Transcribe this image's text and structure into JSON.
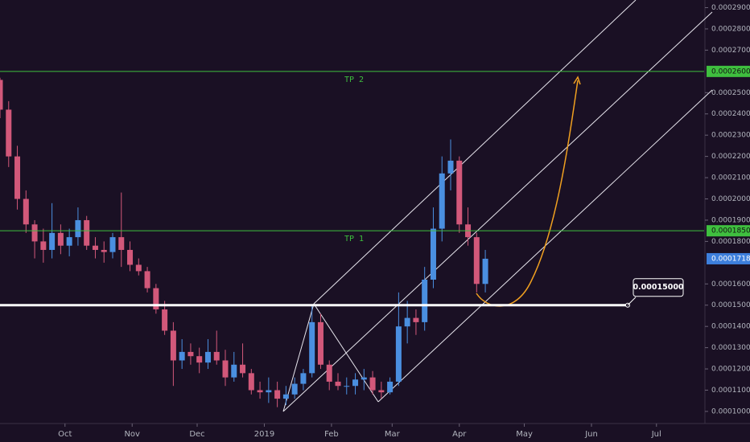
{
  "chart_data": {
    "type": "candlestick",
    "xlim": [
      0,
      325
    ],
    "xticks": [
      {
        "value": 30,
        "label": "Oct"
      },
      {
        "value": 61,
        "label": "Nov"
      },
      {
        "value": 91,
        "label": "Dec"
      },
      {
        "value": 122,
        "label": "2019"
      },
      {
        "value": 153,
        "label": "Feb"
      },
      {
        "value": 181,
        "label": "Mar"
      },
      {
        "value": 212,
        "label": "Apr"
      },
      {
        "value": 242,
        "label": "May"
      },
      {
        "value": 273,
        "label": "Jun"
      },
      {
        "value": 303,
        "label": "Jul"
      }
    ],
    "ylim": [
      9.62e-05,
      0.0002936
    ],
    "yticks": [
      {
        "value": 0.0001,
        "label": "0.00010000"
      },
      {
        "value": 0.00011,
        "label": "0.00011000"
      },
      {
        "value": 0.00012,
        "label": "0.00012000"
      },
      {
        "value": 0.00013,
        "label": "0.00013000"
      },
      {
        "value": 0.00014,
        "label": "0.00014000"
      },
      {
        "value": 0.00015,
        "label": "0.00015000"
      },
      {
        "value": 0.00016,
        "label": "0.00016000"
      },
      {
        "value": 0.00018,
        "label": "0.00018000"
      },
      {
        "value": 0.00019,
        "label": "0.00019000"
      },
      {
        "value": 0.0002,
        "label": "0.00020000"
      },
      {
        "value": 0.00021,
        "label": "0.00021000"
      },
      {
        "value": 0.00022,
        "label": "0.00022000"
      },
      {
        "value": 0.00023,
        "label": "0.00023000"
      },
      {
        "value": 0.00024,
        "label": "0.00024000"
      },
      {
        "value": 0.00025,
        "label": "0.00025000"
      },
      {
        "value": 0.00027,
        "label": "0.00027000"
      },
      {
        "value": 0.00028,
        "label": "0.00028000"
      },
      {
        "value": 0.00029,
        "label": "0.00029000"
      }
    ],
    "up_color": "#4a8fe0",
    "down_color": "#d2587a",
    "candles": {
      "x": [
        0,
        4,
        8,
        12,
        16,
        20,
        24,
        28,
        32,
        36,
        40,
        44,
        48,
        52,
        56,
        60,
        64,
        68,
        72,
        76,
        80,
        84,
        88,
        92,
        96,
        100,
        104,
        108,
        112,
        116,
        120,
        124,
        128,
        132,
        136,
        140,
        144,
        148,
        152,
        156,
        160,
        164,
        168,
        172,
        176,
        180,
        184,
        188,
        192,
        196,
        200,
        204,
        208,
        212,
        216,
        220,
        224
      ],
      "open": [
        0.000256,
        0.000242,
        0.00022,
        0.0002,
        0.000188,
        0.00018,
        0.000176,
        0.000184,
        0.000178,
        0.000182,
        0.00019,
        0.000178,
        0.000176,
        0.000175,
        0.000182,
        0.000176,
        0.000169,
        0.000166,
        0.000158,
        0.000148,
        0.000138,
        0.000124,
        0.000128,
        0.000126,
        0.000123,
        0.000128,
        0.000124,
        0.000116,
        0.000122,
        0.000118,
        0.00011,
        0.000109,
        0.00011,
        0.000106,
        0.000108,
        0.000113,
        0.000118,
        0.000142,
        0.000122,
        0.000114,
        0.000112,
        0.000112,
        0.000115,
        0.000116,
        0.00011,
        0.000109,
        0.000114,
        0.00014,
        0.000144,
        0.000142,
        0.000162,
        0.000186,
        0.000212,
        0.000218,
        0.000188,
        0.000182,
        0.00016
      ],
      "high": [
        0.000257,
        0.000246,
        0.000225,
        0.000204,
        0.00019,
        0.000186,
        0.000198,
        0.000188,
        0.000186,
        0.000196,
        0.000192,
        0.000182,
        0.00018,
        0.000184,
        0.000203,
        0.00018,
        0.000172,
        0.000168,
        0.00016,
        0.000152,
        0.000142,
        0.000134,
        0.000132,
        0.00013,
        0.000134,
        0.000138,
        0.000129,
        0.000128,
        0.000132,
        0.00012,
        0.000114,
        0.000116,
        0.000114,
        0.000112,
        0.000116,
        0.00012,
        0.00015,
        0.000146,
        0.000124,
        0.000118,
        0.000116,
        0.000118,
        0.00012,
        0.000119,
        0.000114,
        0.000116,
        0.000156,
        0.000152,
        0.000148,
        0.000168,
        0.000196,
        0.00022,
        0.000228,
        0.00022,
        0.000196,
        0.000184,
        0.000176
      ],
      "low": [
        0.000238,
        0.000215,
        0.000195,
        0.000184,
        0.000172,
        0.00017,
        0.000172,
        0.000174,
        0.000173,
        0.000178,
        0.000176,
        0.000172,
        0.00017,
        0.000172,
        0.000168,
        0.000166,
        0.000164,
        0.000156,
        0.000146,
        0.000136,
        0.000112,
        0.00012,
        0.000122,
        0.000118,
        0.00012,
        0.000122,
        0.000112,
        0.000114,
        0.000116,
        0.000108,
        0.000106,
        0.000104,
        0.000102,
        0.000103,
        0.000106,
        0.00011,
        0.000116,
        0.00012,
        0.00011,
        0.00011,
        0.000108,
        0.000108,
        0.00011,
        0.000108,
        0.000106,
        0.000108,
        0.000112,
        0.000132,
        0.000136,
        0.000138,
        0.000158,
        0.00018,
        0.000204,
        0.000184,
        0.000178,
        0.000156,
        0.000156
      ],
      "close": [
        0.000242,
        0.00022,
        0.0002,
        0.000188,
        0.00018,
        0.000176,
        0.000184,
        0.000178,
        0.000182,
        0.00019,
        0.000178,
        0.000176,
        0.000175,
        0.000182,
        0.000176,
        0.000169,
        0.000166,
        0.000158,
        0.000148,
        0.000138,
        0.000124,
        0.000128,
        0.000126,
        0.000123,
        0.000128,
        0.000124,
        0.000116,
        0.000122,
        0.000118,
        0.00011,
        0.000109,
        0.00011,
        0.000106,
        0.000108,
        0.000113,
        0.000118,
        0.000142,
        0.000122,
        0.000114,
        0.000112,
        0.000112,
        0.000115,
        0.000116,
        0.00011,
        0.000109,
        0.000114,
        0.00014,
        0.000144,
        0.000142,
        0.000162,
        0.000186,
        0.000212,
        0.000218,
        0.000188,
        0.000182,
        0.00016,
        0.00017185
      ]
    },
    "levels": [
      {
        "name": "TP 2",
        "value": 0.00026,
        "label": "0.00026000",
        "color": "#3fbf3f"
      },
      {
        "name": "TP 1",
        "value": 0.000185,
        "label": "0.00018500",
        "color": "#3fbf3f"
      }
    ],
    "support": {
      "value": 0.00015,
      "label": "0.00015000",
      "color": "#ffffff"
    },
    "last_price": {
      "value": 0.00017185,
      "label": "0.00017185",
      "color": "#3d7fdc"
    }
  }
}
